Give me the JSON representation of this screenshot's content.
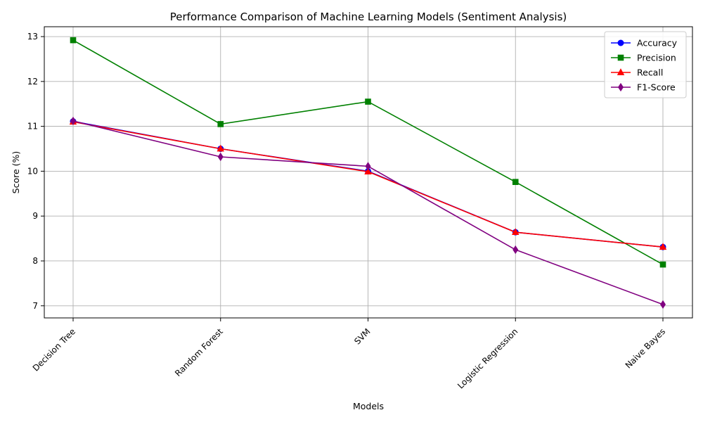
{
  "chart_data": {
    "type": "line",
    "title": "Performance Comparison of Machine Learning Models (Sentiment Analysis)",
    "xlabel": "Models",
    "ylabel": "Score (%)",
    "categories": [
      "Decision Tree",
      "Random Forest",
      "SVM",
      "Logistic Regression",
      "Naive Bayes"
    ],
    "ylim": [
      6.73,
      13.22
    ],
    "yticks": [
      7,
      8,
      9,
      10,
      11,
      12,
      13
    ],
    "grid": true,
    "legend_position": "top-right",
    "series": [
      {
        "name": "Accuracy",
        "color": "#0000ff",
        "marker": "circle",
        "values": [
          11.11,
          10.5,
          10.0,
          8.64,
          8.31
        ]
      },
      {
        "name": "Precision",
        "color": "#008000",
        "marker": "square",
        "values": [
          12.92,
          11.05,
          11.55,
          9.76,
          7.92
        ]
      },
      {
        "name": "Recall",
        "color": "#ff0000",
        "marker": "triangle",
        "values": [
          11.1,
          10.5,
          9.99,
          8.64,
          8.31
        ]
      },
      {
        "name": "F1-Score",
        "color": "#800080",
        "marker": "diamond",
        "values": [
          11.12,
          10.32,
          10.11,
          8.25,
          7.03
        ]
      }
    ]
  }
}
